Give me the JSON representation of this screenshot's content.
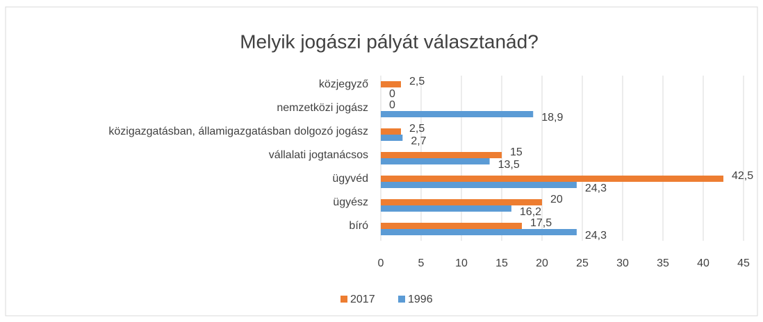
{
  "chart_data": {
    "type": "barh",
    "title": "Melyik jogászi pályát választanád?",
    "categories": [
      "közjegyző",
      "nemzetközi jogász",
      "közigazgatásban, államigazgatásban dolgozó jogász",
      "vállalati jogtanácsos",
      "ügyvéd",
      "ügyész",
      "bíró"
    ],
    "series": [
      {
        "name": "2017",
        "color": "#ed7d31",
        "values": [
          2.5,
          0,
          2.5,
          15,
          42.5,
          20,
          17.5
        ],
        "value_labels": [
          "2,5",
          "0",
          "2,5",
          "15",
          "42,5",
          "20",
          "17,5"
        ]
      },
      {
        "name": "1996",
        "color": "#5b9bd5",
        "values": [
          0,
          18.9,
          2.7,
          13.5,
          24.3,
          16.2,
          24.3
        ],
        "value_labels": [
          "0",
          "18,9",
          "2,7",
          "13,5",
          "24,3",
          "16,2",
          "24,3"
        ]
      }
    ],
    "xlim": [
      0,
      45
    ],
    "xticks": [
      0,
      5,
      10,
      15,
      20,
      25,
      30,
      35,
      40,
      45
    ],
    "grid": true,
    "legend": "bottom"
  }
}
